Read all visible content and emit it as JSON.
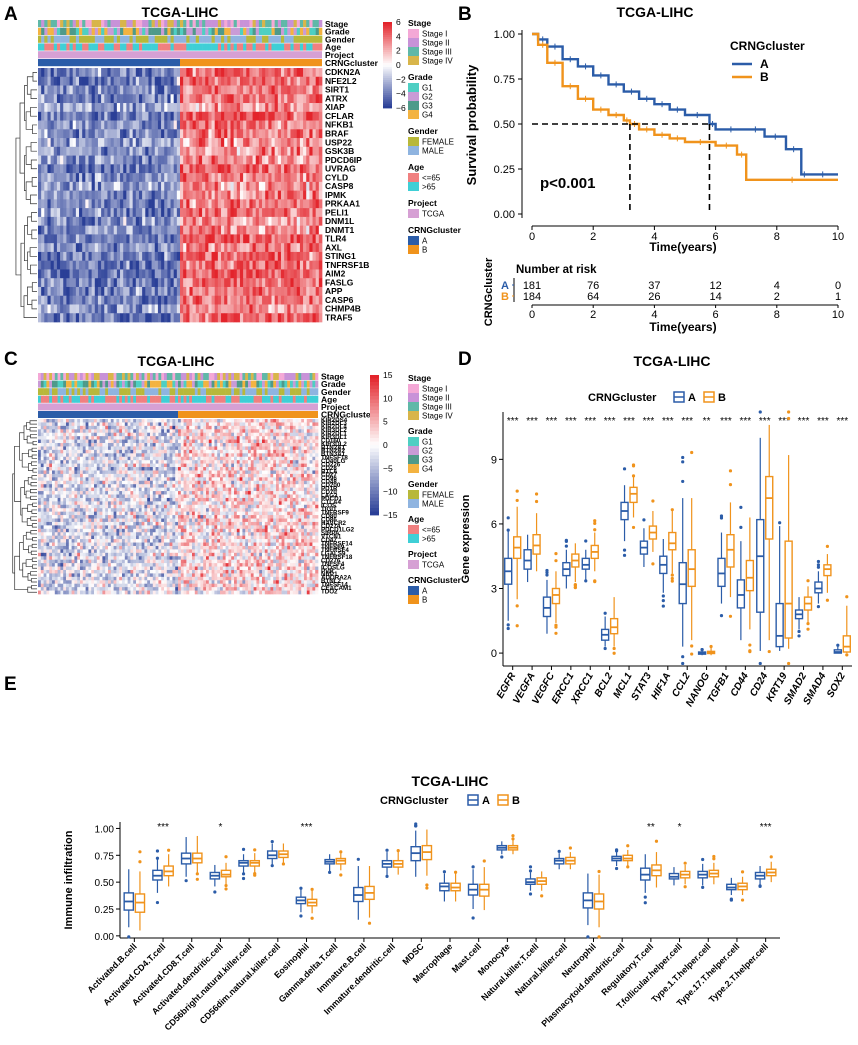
{
  "figure": {
    "panel_labels": [
      "A",
      "B",
      "C",
      "D",
      "E"
    ],
    "colors": {
      "cluster_A": "#2b5ca8",
      "cluster_B": "#f0931c",
      "heat_high": "#e3242b",
      "heat_low": "#2a3f97",
      "heat_mid": "#ffffff"
    }
  },
  "legend_heatmap": {
    "stage_title": "Stage",
    "stage": [
      "Stage I",
      "Stage II",
      "Stage III",
      "Stage IV"
    ],
    "stage_colors": [
      "#f4a8d6",
      "#c892d8",
      "#5fb8a8",
      "#d8b54a"
    ],
    "grade_title": "Grade",
    "grade": [
      "G1",
      "G2",
      "G3",
      "G4"
    ],
    "grade_colors": [
      "#4ecfc3",
      "#c99bd6",
      "#4e9a8a",
      "#f3b341"
    ],
    "gender_title": "Gender",
    "gender": [
      "FEMALE",
      "MALE"
    ],
    "gender_colors": [
      "#b8b83a",
      "#8fb4e0"
    ],
    "age_title": "Age",
    "age": [
      "<=65",
      ">65"
    ],
    "age_colors": [
      "#f08080",
      "#3fcfd6"
    ],
    "project_title": "Project",
    "project": [
      "TCGA"
    ],
    "project_colors": [
      "#d6a0d4"
    ],
    "cluster_title": "CRNGcluster",
    "cluster": [
      "A",
      "B"
    ],
    "cluster_colors": [
      "#2b5ca8",
      "#f0931c"
    ]
  },
  "panelA": {
    "title": "TCGA-LIHC",
    "annotation_rows": [
      "Stage",
      "Grade",
      "Gender",
      "Age",
      "Project",
      "CRNGcluster"
    ],
    "genes": [
      "CDKN2A",
      "NFE2L2",
      "SIRT1",
      "ATRX",
      "XIAP",
      "CFLAR",
      "NFKB1",
      "BRAF",
      "USP22",
      "GSK3B",
      "PDCD6IP",
      "UVRAG",
      "CYLD",
      "CASP8",
      "IPMK",
      "PRKAA1",
      "PELI1",
      "DNM1L",
      "DNMT1",
      "TLR4",
      "AXL",
      "STING1",
      "TNFRSF1B",
      "AIM2",
      "FASLG",
      "APP",
      "CASP6",
      "CHMP4B",
      "TRAF5"
    ],
    "scale_ticks": [
      "6",
      "4",
      "2",
      "0",
      "−2",
      "−4",
      "−6"
    ]
  },
  "panelB": {
    "title": "TCGA-LIHC",
    "ylabel": "Survival probability",
    "xlabel": "Time(years)",
    "y_ticks": [
      "1.00",
      "0.75",
      "0.50",
      "0.25",
      "0.00"
    ],
    "x_ticks": [
      "0",
      "2",
      "4",
      "6",
      "8",
      "10"
    ],
    "pvalue": "p<0.001",
    "legend_title": "CRNGcluster",
    "legend": [
      "A",
      "B"
    ],
    "median_A": 5.8,
    "median_B": 3.2,
    "curveA": [
      [
        0,
        1.0
      ],
      [
        0.2,
        0.97
      ],
      [
        0.5,
        0.93
      ],
      [
        1.0,
        0.86
      ],
      [
        1.5,
        0.82
      ],
      [
        2.0,
        0.77
      ],
      [
        2.5,
        0.72
      ],
      [
        3.0,
        0.68
      ],
      [
        3.5,
        0.64
      ],
      [
        4.0,
        0.61
      ],
      [
        4.5,
        0.58
      ],
      [
        5.0,
        0.55
      ],
      [
        5.8,
        0.5
      ],
      [
        6.0,
        0.47
      ],
      [
        7.0,
        0.47
      ],
      [
        7.6,
        0.43
      ],
      [
        8.3,
        0.36
      ],
      [
        8.8,
        0.22
      ],
      [
        9.0,
        0.22
      ],
      [
        10.0,
        0.22
      ]
    ],
    "curveB": [
      [
        0,
        1.0
      ],
      [
        0.2,
        0.94
      ],
      [
        0.5,
        0.84
      ],
      [
        1.0,
        0.71
      ],
      [
        1.5,
        0.64
      ],
      [
        2.0,
        0.58
      ],
      [
        2.5,
        0.55
      ],
      [
        3.0,
        0.52
      ],
      [
        3.2,
        0.5
      ],
      [
        3.5,
        0.47
      ],
      [
        4.0,
        0.44
      ],
      [
        4.5,
        0.42
      ],
      [
        5.0,
        0.4
      ],
      [
        6.0,
        0.38
      ],
      [
        6.7,
        0.33
      ],
      [
        7.0,
        0.19
      ],
      [
        10.0,
        0.19
      ]
    ],
    "risk_table": {
      "title": "Number at risk",
      "ylabel": "CRNGcluster",
      "xlabel": "Time(years)",
      "rows": [
        {
          "label": "A",
          "values": [
            "181",
            "76",
            "37",
            "12",
            "4",
            "0"
          ]
        },
        {
          "label": "B",
          "values": [
            "184",
            "64",
            "26",
            "14",
            "2",
            "1"
          ]
        }
      ],
      "x_ticks": [
        "0",
        "2",
        "4",
        "6",
        "8",
        "10"
      ]
    }
  },
  "panelC": {
    "title": "TCGA-LIHC",
    "annotation_rows": [
      "Stage",
      "Grade",
      "Gender",
      "Age",
      "Project",
      "CRNGcluster"
    ],
    "genes": [
      "KIR2DS4",
      "KIR2DL3",
      "KIR2DL4",
      "KIR3DL2",
      "KIR2DL1",
      "KIR3DL1",
      "CD160",
      "KIR3DL2",
      "BTN2A1",
      "BTN2A2",
      "BTN3A1",
      "TNFSF18",
      "CD40LG",
      "CD226",
      "CD28",
      "BTLA",
      "CD27",
      "CD96",
      "CD48",
      "CD200",
      "PD1R",
      "CD70",
      "LAG3",
      "PDCD1",
      "CTLA4",
      "ICOS",
      "TIGIT",
      "TNFRSF9",
      "CD80",
      "CD86",
      "HAVCR2",
      "CD274",
      "PDCD1LG2",
      "SIRPA",
      "VTCN1",
      "CD47",
      "TNFRSF14",
      "TNFSF9",
      "TNFRSF4",
      "LGALS9",
      "TNFRSF18",
      "CD276",
      "TNFSF4",
      "ICOSLG",
      "PVR",
      "NRP1",
      "ADORA2A",
      "BTNL2",
      "TNFSF14",
      "CEACAM1",
      "TDO2"
    ],
    "scale_ticks": [
      "15",
      "10",
      "5",
      "0",
      "−5",
      "−10",
      "−15"
    ]
  },
  "chart_data": [
    {
      "panel": "D",
      "type": "box",
      "title": "TCGA-LIHC",
      "ylabel": "Gene expression",
      "legend_title": "CRNGcluster",
      "legend": [
        "A",
        "B"
      ],
      "ylim": [
        -0.6,
        11.2
      ],
      "y_ticks": [
        0,
        3,
        6,
        9
      ],
      "categories": [
        "EGFR",
        "VEGFA",
        "VEGFC",
        "ERCC1",
        "XRCC1",
        "BCL2",
        "MCL1",
        "STAT3",
        "HIF1A",
        "CCL2",
        "NANOG",
        "TGFB1",
        "CD44",
        "CD24",
        "KRT19",
        "SMAD2",
        "SMAD4",
        "SOX2"
      ],
      "significance": [
        "***",
        "***",
        "***",
        "***",
        "***",
        "***",
        "***",
        "***",
        "***",
        "***",
        "**",
        "***",
        "***",
        "***",
        "***",
        "***",
        "***",
        "***"
      ],
      "series": [
        {
          "name": "A",
          "boxes": [
            [
              1.5,
              3.2,
              3.8,
              4.4,
              5.7
            ],
            [
              3.3,
              3.9,
              4.3,
              4.8,
              5.5
            ],
            [
              0.9,
              1.7,
              2.1,
              2.6,
              3.4
            ],
            [
              3.0,
              3.6,
              3.9,
              4.2,
              4.8
            ],
            [
              3.4,
              3.9,
              4.1,
              4.4,
              4.8
            ],
            [
              0.3,
              0.6,
              0.85,
              1.1,
              1.7
            ],
            [
              5.2,
              6.2,
              6.6,
              7.0,
              7.8
            ],
            [
              4.0,
              4.6,
              4.9,
              5.2,
              5.8
            ],
            [
              2.8,
              3.7,
              4.1,
              4.5,
              5.3
            ],
            [
              0.3,
              2.3,
              3.2,
              4.2,
              7.2
            ],
            [
              -0.1,
              -0.05,
              0,
              0.05,
              0.15
            ],
            [
              2.3,
              3.1,
              3.7,
              4.4,
              5.6
            ],
            [
              0.6,
              2.1,
              2.7,
              3.4,
              5.2
            ],
            [
              0.1,
              1.9,
              4.5,
              6.2,
              10.0
            ],
            [
              0.1,
              0.3,
              0.8,
              2.3,
              5.9
            ],
            [
              1.1,
              1.6,
              1.8,
              2.0,
              2.6
            ],
            [
              2.3,
              2.8,
              3.0,
              3.3,
              3.8
            ],
            [
              0,
              0,
              0.05,
              0.15,
              0.3
            ]
          ]
        },
        {
          "name": "B",
          "boxes": [
            [
              2.5,
              4.4,
              4.9,
              5.4,
              6.8
            ],
            [
              3.8,
              4.6,
              5.0,
              5.5,
              6.5
            ],
            [
              1.4,
              2.3,
              2.7,
              3.0,
              3.8
            ],
            [
              3.3,
              4.0,
              4.3,
              4.6,
              5.1
            ],
            [
              3.8,
              4.4,
              4.7,
              5.0,
              5.6
            ],
            [
              0.3,
              0.9,
              1.2,
              1.6,
              2.6
            ],
            [
              6.3,
              7.0,
              7.4,
              7.7,
              8.2
            ],
            [
              4.7,
              5.3,
              5.6,
              5.9,
              6.6
            ],
            [
              3.7,
              4.8,
              5.1,
              5.6,
              6.6
            ],
            [
              0.6,
              3.1,
              3.9,
              4.8,
              7.2
            ],
            [
              -0.1,
              -0.02,
              0.02,
              0.08,
              0.25
            ],
            [
              2.6,
              4.0,
              4.8,
              5.5,
              7.0
            ],
            [
              1.1,
              2.9,
              3.5,
              4.3,
              6.3
            ],
            [
              0.6,
              5.3,
              7.2,
              8.2,
              10.6
            ],
            [
              0.2,
              0.7,
              2.3,
              5.2,
              9.2
            ],
            [
              1.4,
              2.0,
              2.3,
              2.6,
              3.1
            ],
            [
              2.8,
              3.6,
              3.9,
              4.1,
              4.6
            ],
            [
              0,
              0.05,
              0.3,
              0.8,
              2.2
            ]
          ]
        }
      ]
    },
    {
      "panel": "E",
      "type": "box",
      "title": "TCGA-LIHC",
      "ylabel": "Immune infiltration",
      "legend_title": "CRNGcluster",
      "legend": [
        "A",
        "B"
      ],
      "ylim": [
        -0.02,
        1.06
      ],
      "y_ticks": [
        "0.00",
        "0.25",
        "0.50",
        "0.75",
        "1.00"
      ],
      "categories": [
        "Activated.B.cell",
        "Activated.CD4.T.cell",
        "Activated.CD8.T.cell",
        "Activated.dendritic.cell",
        "CD56bright.natural.killer.cell",
        "CD56dim.natural.killer.cell",
        "Eosinophil",
        "Gamma.delta.T.cell",
        "Immature.B.cell",
        "Immature.dendritic.cell",
        "MDSC",
        "Macrophage",
        "Mast.cell",
        "Monocyte",
        "Natural.killer.T.cell",
        "Natural.killer.cell",
        "Neutrophil",
        "Plasmacytoid.dendritic.cell",
        "Regulatory.T.cell",
        "T.follicular.helper.cell",
        "Type.1.T.helper.cell",
        "Type.17.T.helper.cell",
        "Type.2.T.helper.cell"
      ],
      "significance": [
        "",
        "***",
        "",
        "*",
        "",
        "",
        "***",
        "",
        "",
        "",
        "",
        "",
        "",
        "",
        "",
        "",
        "",
        "",
        "**",
        "*",
        "",
        "",
        "***"
      ],
      "series": [
        {
          "name": "A",
          "boxes": [
            [
              0.08,
              0.24,
              0.32,
              0.4,
              0.62
            ],
            [
              0.4,
              0.52,
              0.56,
              0.61,
              0.72
            ],
            [
              0.55,
              0.67,
              0.72,
              0.77,
              0.92
            ],
            [
              0.46,
              0.53,
              0.56,
              0.59,
              0.66
            ],
            [
              0.58,
              0.65,
              0.68,
              0.7,
              0.76
            ],
            [
              0.66,
              0.72,
              0.75,
              0.79,
              0.86
            ],
            [
              0.22,
              0.3,
              0.33,
              0.36,
              0.44
            ],
            [
              0.6,
              0.67,
              0.69,
              0.71,
              0.76
            ],
            [
              0.15,
              0.32,
              0.38,
              0.45,
              0.65
            ],
            [
              0.56,
              0.64,
              0.67,
              0.7,
              0.78
            ],
            [
              0.55,
              0.7,
              0.77,
              0.83,
              0.98
            ],
            [
              0.32,
              0.42,
              0.46,
              0.49,
              0.58
            ],
            [
              0.25,
              0.38,
              0.43,
              0.48,
              0.62
            ],
            [
              0.76,
              0.8,
              0.82,
              0.84,
              0.88
            ],
            [
              0.42,
              0.48,
              0.5,
              0.53,
              0.59
            ],
            [
              0.62,
              0.67,
              0.7,
              0.72,
              0.77
            ],
            [
              0.1,
              0.26,
              0.33,
              0.4,
              0.58
            ],
            [
              0.65,
              0.7,
              0.72,
              0.74,
              0.79
            ],
            [
              0.4,
              0.52,
              0.57,
              0.63,
              0.76
            ],
            [
              0.47,
              0.53,
              0.55,
              0.58,
              0.64
            ],
            [
              0.47,
              0.54,
              0.57,
              0.6,
              0.67
            ],
            [
              0.38,
              0.43,
              0.45,
              0.48,
              0.54
            ],
            [
              0.47,
              0.53,
              0.56,
              0.59,
              0.65
            ]
          ]
        },
        {
          "name": "B",
          "boxes": [
            [
              0.05,
              0.22,
              0.31,
              0.39,
              0.6
            ],
            [
              0.46,
              0.56,
              0.6,
              0.65,
              0.76
            ],
            [
              0.58,
              0.68,
              0.72,
              0.77,
              0.93
            ],
            [
              0.47,
              0.55,
              0.57,
              0.61,
              0.68
            ],
            [
              0.59,
              0.65,
              0.68,
              0.7,
              0.77
            ],
            [
              0.67,
              0.73,
              0.76,
              0.79,
              0.86
            ],
            [
              0.21,
              0.28,
              0.31,
              0.34,
              0.42
            ],
            [
              0.61,
              0.67,
              0.7,
              0.72,
              0.77
            ],
            [
              0.17,
              0.34,
              0.4,
              0.46,
              0.65
            ],
            [
              0.57,
              0.64,
              0.67,
              0.7,
              0.79
            ],
            [
              0.56,
              0.71,
              0.78,
              0.84,
              0.99
            ],
            [
              0.32,
              0.42,
              0.45,
              0.49,
              0.59
            ],
            [
              0.24,
              0.37,
              0.43,
              0.48,
              0.64
            ],
            [
              0.76,
              0.8,
              0.82,
              0.84,
              0.89
            ],
            [
              0.42,
              0.48,
              0.51,
              0.54,
              0.6
            ],
            [
              0.62,
              0.67,
              0.7,
              0.73,
              0.78
            ],
            [
              0.08,
              0.25,
              0.32,
              0.39,
              0.57
            ],
            [
              0.65,
              0.7,
              0.72,
              0.75,
              0.8
            ],
            [
              0.45,
              0.56,
              0.61,
              0.66,
              0.78
            ],
            [
              0.48,
              0.54,
              0.57,
              0.6,
              0.66
            ],
            [
              0.48,
              0.55,
              0.58,
              0.61,
              0.68
            ],
            [
              0.38,
              0.43,
              0.46,
              0.49,
              0.55
            ],
            [
              0.5,
              0.56,
              0.59,
              0.62,
              0.69
            ]
          ]
        }
      ]
    }
  ]
}
